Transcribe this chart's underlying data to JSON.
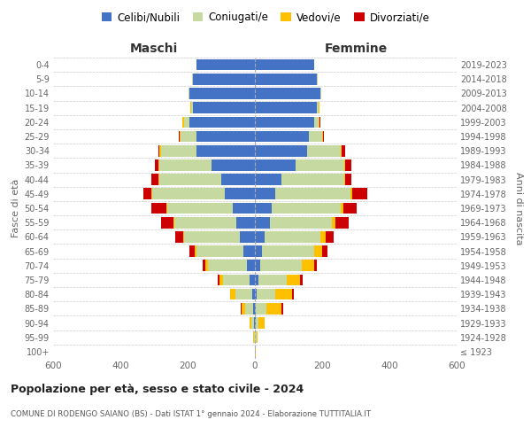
{
  "age_groups": [
    "100+",
    "95-99",
    "90-94",
    "85-89",
    "80-84",
    "75-79",
    "70-74",
    "65-69",
    "60-64",
    "55-59",
    "50-54",
    "45-49",
    "40-44",
    "35-39",
    "30-34",
    "25-29",
    "20-24",
    "15-19",
    "10-14",
    "5-9",
    "0-4"
  ],
  "birth_years": [
    "≤ 1923",
    "1924-1928",
    "1929-1933",
    "1934-1938",
    "1939-1943",
    "1944-1948",
    "1949-1953",
    "1954-1958",
    "1959-1963",
    "1964-1968",
    "1969-1973",
    "1974-1978",
    "1979-1983",
    "1984-1988",
    "1989-1993",
    "1994-1998",
    "1999-2003",
    "2004-2008",
    "2009-2013",
    "2014-2018",
    "2019-2023"
  ],
  "colors": {
    "celibi": "#4472c4",
    "coniugati": "#c5d9a0",
    "vedovi": "#ffc000",
    "divorziati": "#cc0000"
  },
  "maschi": {
    "celibi": [
      0,
      0,
      2,
      5,
      8,
      15,
      25,
      35,
      45,
      55,
      65,
      90,
      100,
      130,
      175,
      175,
      195,
      185,
      195,
      185,
      175
    ],
    "coniugati": [
      0,
      2,
      8,
      25,
      50,
      80,
      115,
      140,
      165,
      185,
      195,
      215,
      185,
      155,
      105,
      45,
      15,
      5,
      2,
      1,
      0
    ],
    "vedovi": [
      0,
      2,
      5,
      10,
      15,
      10,
      8,
      5,
      3,
      3,
      3,
      2,
      2,
      3,
      3,
      3,
      5,
      1,
      0,
      0,
      0
    ],
    "divorziati": [
      0,
      0,
      0,
      2,
      2,
      5,
      8,
      15,
      25,
      35,
      45,
      25,
      20,
      10,
      5,
      3,
      2,
      1,
      0,
      0,
      0
    ]
  },
  "femmine": {
    "celibi": [
      0,
      1,
      2,
      3,
      5,
      10,
      15,
      20,
      30,
      45,
      50,
      60,
      80,
      120,
      155,
      160,
      175,
      185,
      195,
      185,
      175
    ],
    "coniugati": [
      0,
      3,
      8,
      30,
      55,
      85,
      125,
      155,
      165,
      185,
      205,
      225,
      185,
      145,
      100,
      40,
      15,
      5,
      2,
      1,
      0
    ],
    "vedovi": [
      2,
      5,
      20,
      45,
      50,
      40,
      35,
      25,
      15,
      10,
      8,
      5,
      3,
      3,
      3,
      2,
      2,
      1,
      0,
      0,
      0
    ],
    "divorziati": [
      0,
      0,
      0,
      5,
      5,
      8,
      10,
      15,
      25,
      40,
      40,
      45,
      20,
      20,
      10,
      3,
      2,
      1,
      0,
      0,
      0
    ]
  },
  "title": "Popolazione per età, sesso e stato civile - 2024",
  "subtitle": "COMUNE DI RODENGO SAIANO (BS) - Dati ISTAT 1° gennaio 2024 - Elaborazione TUTTITALIA.IT",
  "xlabel_left": "Maschi",
  "xlabel_right": "Femmine",
  "ylabel_left": "Fasce di età",
  "ylabel_right": "Anni di nascita",
  "xlim": 600,
  "legend_labels": [
    "Celibi/Nubili",
    "Coniugati/e",
    "Vedovi/e",
    "Divorziati/e"
  ],
  "bg_color": "#ffffff",
  "grid_color": "#cccccc"
}
